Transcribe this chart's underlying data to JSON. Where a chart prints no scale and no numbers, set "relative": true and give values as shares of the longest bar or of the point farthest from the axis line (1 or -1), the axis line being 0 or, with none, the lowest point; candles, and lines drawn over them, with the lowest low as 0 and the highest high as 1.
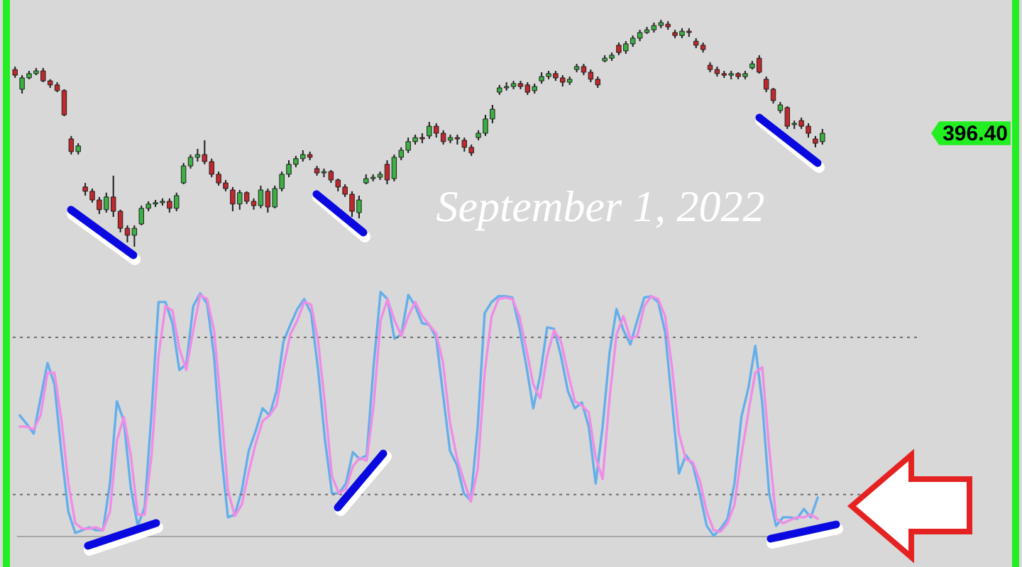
{
  "chart_data": [
    {
      "type": "candlestick",
      "relative": true,
      "categories": [
        null,
        null,
        null,
        null,
        null,
        null,
        null,
        null,
        null,
        null,
        null,
        null,
        null,
        null,
        null,
        null,
        null,
        null,
        null,
        null,
        null,
        null,
        null,
        null,
        null,
        null,
        null,
        null,
        null,
        null,
        null,
        null,
        null,
        null,
        null,
        null,
        null,
        null,
        null,
        null,
        null,
        null,
        null,
        null,
        null,
        null,
        null,
        null,
        null,
        null,
        null,
        null,
        null,
        null,
        null,
        null,
        null,
        null,
        null,
        null,
        null,
        null,
        null,
        null,
        null,
        null,
        null,
        null,
        null,
        null,
        null,
        null,
        null,
        null,
        null,
        null,
        null,
        null,
        null,
        null,
        null,
        null,
        null,
        null,
        null,
        null,
        null,
        null,
        null,
        null,
        null,
        null,
        null,
        null,
        null,
        null,
        null,
        null,
        null,
        null,
        null,
        null,
        null,
        null,
        null,
        null,
        null,
        null,
        null,
        null,
        null,
        null,
        null,
        null,
        null,
        null
      ],
      "ohlc": [
        [
          0.781,
          0.794,
          0.744,
          0.756
        ],
        [
          0.694,
          0.756,
          0.675,
          0.744
        ],
        [
          0.744,
          0.775,
          0.738,
          0.763
        ],
        [
          0.763,
          0.788,
          0.756,
          0.775
        ],
        [
          0.775,
          0.788,
          0.725,
          0.731
        ],
        [
          0.731,
          0.738,
          0.7,
          0.713
        ],
        [
          0.713,
          0.725,
          0.681,
          0.688
        ],
        [
          0.688,
          0.694,
          0.575,
          0.581
        ],
        [
          0.475,
          0.488,
          0.406,
          0.419
        ],
        [
          0.419,
          0.456,
          0.406,
          0.444
        ],
        [
          0.263,
          0.281,
          0.225,
          0.244
        ],
        [
          0.244,
          0.256,
          0.194,
          0.206
        ],
        [
          0.206,
          0.219,
          0.144,
          0.163
        ],
        [
          0.163,
          0.238,
          0.15,
          0.219
        ],
        [
          0.219,
          0.313,
          0.131,
          0.156
        ],
        [
          0.156,
          0.163,
          0.063,
          0.081
        ],
        [
          0.081,
          0.094,
          0.019,
          0.05
        ],
        [
          0.05,
          0.094,
          0,
          0.081
        ],
        [
          0.1,
          0.181,
          0.094,
          0.169
        ],
        [
          0.169,
          0.2,
          0.156,
          0.188
        ],
        [
          0.188,
          0.206,
          0.175,
          0.194
        ],
        [
          0.194,
          0.213,
          0.181,
          0.2
        ],
        [
          0.2,
          0.213,
          0.15,
          0.169
        ],
        [
          0.169,
          0.238,
          0.156,
          0.225
        ],
        [
          0.281,
          0.369,
          0.275,
          0.356
        ],
        [
          0.356,
          0.406,
          0.344,
          0.394
        ],
        [
          0.394,
          0.431,
          0.375,
          0.406
        ],
        [
          0.406,
          0.469,
          0.363,
          0.375
        ],
        [
          0.375,
          0.388,
          0.306,
          0.319
        ],
        [
          0.319,
          0.331,
          0.269,
          0.281
        ],
        [
          0.281,
          0.294,
          0.244,
          0.256
        ],
        [
          0.25,
          0.263,
          0.156,
          0.188
        ],
        [
          0.188,
          0.25,
          0.163,
          0.238
        ],
        [
          0.238,
          0.244,
          0.188,
          0.2
        ],
        [
          0.2,
          0.213,
          0.163,
          0.181
        ],
        [
          0.181,
          0.269,
          0.169,
          0.25
        ],
        [
          0.244,
          0.256,
          0.15,
          0.175
        ],
        [
          0.175,
          0.269,
          0.169,
          0.256
        ],
        [
          0.256,
          0.331,
          0.244,
          0.319
        ],
        [
          0.319,
          0.381,
          0.306,
          0.363
        ],
        [
          0.363,
          0.4,
          0.35,
          0.388
        ],
        [
          0.388,
          0.425,
          0.375,
          0.406
        ],
        [
          0.406,
          0.419,
          0.381,
          0.394
        ],
        [
          0.344,
          0.356,
          0.313,
          0.325
        ],
        [
          0.325,
          0.344,
          0.306,
          0.331
        ],
        [
          0.331,
          0.338,
          0.281,
          0.294
        ],
        [
          0.294,
          0.3,
          0.244,
          0.263
        ],
        [
          0.263,
          0.275,
          0.219,
          0.231
        ],
        [
          0.231,
          0.244,
          0.131,
          0.156
        ],
        [
          0.15,
          0.225,
          0.125,
          0.206
        ],
        [
          0.281,
          0.319,
          0.275,
          0.3
        ],
        [
          0.3,
          0.319,
          0.288,
          0.306
        ],
        [
          0.306,
          0.331,
          0.294,
          0.319
        ],
        [
          0.363,
          0.381,
          0.275,
          0.294
        ],
        [
          0.3,
          0.406,
          0.288,
          0.394
        ],
        [
          0.394,
          0.438,
          0.381,
          0.425
        ],
        [
          0.425,
          0.481,
          0.413,
          0.463
        ],
        [
          0.463,
          0.494,
          0.45,
          0.481
        ],
        [
          0.481,
          0.5,
          0.456,
          0.475
        ],
        [
          0.488,
          0.55,
          0.475,
          0.531
        ],
        [
          0.531,
          0.544,
          0.481,
          0.5
        ],
        [
          0.5,
          0.513,
          0.45,
          0.463
        ],
        [
          0.469,
          0.494,
          0.456,
          0.481
        ],
        [
          0.481,
          0.494,
          0.45,
          0.475
        ],
        [
          0.469,
          0.481,
          0.419,
          0.438
        ],
        [
          0.438,
          0.45,
          0.4,
          0.413
        ],
        [
          0.481,
          0.513,
          0.469,
          0.5
        ],
        [
          0.5,
          0.581,
          0.488,
          0.563
        ],
        [
          0.563,
          0.625,
          0.544,
          0.606
        ],
        [
          0.681,
          0.713,
          0.669,
          0.7
        ],
        [
          0.7,
          0.725,
          0.688,
          0.706
        ],
        [
          0.706,
          0.731,
          0.694,
          0.719
        ],
        [
          0.719,
          0.731,
          0.694,
          0.706
        ],
        [
          0.713,
          0.725,
          0.669,
          0.681
        ],
        [
          0.688,
          0.719,
          0.675,
          0.706
        ],
        [
          0.731,
          0.769,
          0.719,
          0.75
        ],
        [
          0.75,
          0.775,
          0.738,
          0.763
        ],
        [
          0.763,
          0.775,
          0.731,
          0.744
        ],
        [
          0.744,
          0.756,
          0.706,
          0.725
        ],
        [
          0.725,
          0.75,
          0.713,
          0.738
        ],
        [
          0.781,
          0.806,
          0.769,
          0.794
        ],
        [
          0.794,
          0.806,
          0.756,
          0.769
        ],
        [
          0.769,
          0.781,
          0.725,
          0.738
        ],
        [
          0.738,
          0.75,
          0.7,
          0.713
        ],
        [
          0.819,
          0.844,
          0.813,
          0.831
        ],
        [
          0.831,
          0.856,
          0.819,
          0.844
        ],
        [
          0.888,
          0.9,
          0.844,
          0.856
        ],
        [
          0.863,
          0.906,
          0.85,
          0.894
        ],
        [
          0.894,
          0.931,
          0.881,
          0.919
        ],
        [
          0.919,
          0.956,
          0.906,
          0.944
        ],
        [
          0.944,
          0.969,
          0.938,
          0.956
        ],
        [
          0.956,
          0.988,
          0.944,
          0.975
        ],
        [
          0.975,
          1,
          0.963,
          0.988
        ],
        [
          0.981,
          0.994,
          0.956,
          0.969
        ],
        [
          0.944,
          0.956,
          0.919,
          0.931
        ],
        [
          0.931,
          0.963,
          0.919,
          0.95
        ],
        [
          0.95,
          0.963,
          0.925,
          0.944
        ],
        [
          0.906,
          0.919,
          0.875,
          0.888
        ],
        [
          0.888,
          0.9,
          0.856,
          0.869
        ],
        [
          0.8,
          0.813,
          0.769,
          0.781
        ],
        [
          0.781,
          0.794,
          0.75,
          0.763
        ],
        [
          0.763,
          0.775,
          0.744,
          0.756
        ],
        [
          0.756,
          0.775,
          0.738,
          0.763
        ],
        [
          0.763,
          0.769,
          0.738,
          0.75
        ],
        [
          0.75,
          0.775,
          0.738,
          0.763
        ],
        [
          0.788,
          0.819,
          0.781,
          0.806
        ],
        [
          0.831,
          0.844,
          0.763,
          0.769
        ],
        [
          0.738,
          0.75,
          0.681,
          0.694
        ],
        [
          0.694,
          0.7,
          0.631,
          0.644
        ],
        [
          0.6,
          0.638,
          0.588,
          0.625
        ],
        [
          0.613,
          0.619,
          0.519,
          0.531
        ],
        [
          0.538,
          0.556,
          0.519,
          0.544
        ],
        [
          0.556,
          0.569,
          0.519,
          0.531
        ],
        [
          0.531,
          0.544,
          0.481,
          0.5
        ],
        [
          0.475,
          0.488,
          0.438,
          0.456
        ],
        [
          0.463,
          0.519,
          0.45,
          0.5
        ]
      ],
      "colors": [
        "#c0282d",
        "#3cb043",
        "#3cb043",
        "#3cb043",
        "#c0282d",
        "#c0282d",
        "#c0282d",
        "#c0282d",
        "#c0282d",
        "#3cb043",
        "#c0282d",
        "#c0282d",
        "#c0282d",
        "#3cb043",
        "#c0282d",
        "#c0282d",
        "#c0282d",
        "#3cb043",
        "#3cb043",
        "#3cb043",
        "#3cb043",
        "#3cb043",
        "#c0282d",
        "#3cb043",
        "#3cb043",
        "#3cb043",
        "#3cb043",
        "#c0282d",
        "#c0282d",
        "#c0282d",
        "#c0282d",
        "#c0282d",
        "#3cb043",
        "#c0282d",
        "#c0282d",
        "#3cb043",
        "#c0282d",
        "#3cb043",
        "#3cb043",
        "#3cb043",
        "#3cb043",
        "#3cb043",
        "#c0282d",
        "#c0282d",
        "#3cb043",
        "#c0282d",
        "#c0282d",
        "#c0282d",
        "#c0282d",
        "#3cb043",
        "#3cb043",
        "#3cb043",
        "#3cb043",
        "#c0282d",
        "#3cb043",
        "#3cb043",
        "#3cb043",
        "#3cb043",
        "#c0282d",
        "#3cb043",
        "#c0282d",
        "#c0282d",
        "#3cb043",
        "#c0282d",
        "#c0282d",
        "#c0282d",
        "#3cb043",
        "#3cb043",
        "#3cb043",
        "#3cb043",
        "#3cb043",
        "#3cb043",
        "#c0282d",
        "#c0282d",
        "#3cb043",
        "#3cb043",
        "#3cb043",
        "#c0282d",
        "#c0282d",
        "#3cb043",
        "#3cb043",
        "#c0282d",
        "#c0282d",
        "#c0282d",
        "#3cb043",
        "#3cb043",
        "#c0282d",
        "#3cb043",
        "#3cb043",
        "#3cb043",
        "#3cb043",
        "#3cb043",
        "#3cb043",
        "#c0282d",
        "#c0282d",
        "#3cb043",
        "#c0282d",
        "#c0282d",
        "#c0282d",
        "#c0282d",
        "#c0282d",
        "#c0282d",
        "#3cb043",
        "#c0282d",
        "#3cb043",
        "#3cb043",
        "#c0282d",
        "#c0282d",
        "#c0282d",
        "#3cb043",
        "#c0282d",
        "#3cb043",
        "#c0282d",
        "#c0282d",
        "#c0282d",
        "#3cb043"
      ],
      "annotations": [
        "September 1, 2022",
        "396.40"
      ]
    },
    {
      "type": "line",
      "relative": true,
      "categories": [
        null,
        null,
        null,
        null,
        null,
        null,
        null,
        null,
        null,
        null,
        null,
        null,
        null,
        null,
        null,
        null,
        null,
        null,
        null,
        null,
        null,
        null,
        null,
        null,
        null,
        null,
        null,
        null,
        null,
        null,
        null,
        null,
        null,
        null,
        null,
        null,
        null,
        null,
        null,
        null,
        null,
        null,
        null,
        null,
        null,
        null,
        null,
        null,
        null,
        null,
        null,
        null,
        null,
        null,
        null,
        null,
        null,
        null,
        null,
        null,
        null,
        null,
        null,
        null,
        null,
        null,
        null,
        null,
        null,
        null,
        null,
        null,
        null,
        null,
        null,
        null,
        null,
        null,
        null,
        null,
        null,
        null,
        null,
        null,
        null,
        null,
        null,
        null,
        null,
        null,
        null,
        null,
        null,
        null,
        null,
        null,
        null,
        null,
        null,
        null,
        null,
        null,
        null,
        null,
        null,
        null,
        null,
        null,
        null,
        null,
        null,
        null,
        null,
        null,
        null,
        null
      ],
      "series": [
        {
          "color": "#64afeb",
          "values": [
            0.494,
            0.459,
            0.419,
            0.564,
            0.709,
            0.622,
            0.343,
            0.099,
            0.012,
            0.023,
            0.035,
            0.023,
            0.023,
            0.215,
            0.552,
            0.471,
            0.198,
            0.041,
            0.116,
            0.506,
            0.959,
            0.959,
            0.872,
            0.68,
            0.703,
            0.942,
            0.994,
            0.953,
            0.738,
            0.349,
            0.076,
            0.087,
            0.186,
            0.349,
            0.43,
            0.523,
            0.494,
            0.593,
            0.797,
            0.866,
            0.93,
            0.971,
            0.913,
            0.68,
            0.39,
            0.174,
            0.174,
            0.215,
            0.343,
            0.314,
            0.331,
            0.698,
            1,
            0.971,
            0.808,
            0.826,
            0.988,
            0.942,
            0.872,
            0.866,
            0.814,
            0.581,
            0.349,
            0.291,
            0.174,
            0.145,
            0.448,
            0.913,
            0.959,
            0.983,
            0.983,
            0.977,
            0.855,
            0.698,
            0.523,
            0.657,
            0.855,
            0.849,
            0.738,
            0.593,
            0.523,
            0.547,
            0.448,
            0.215,
            0.448,
            0.75,
            0.93,
            0.843,
            0.785,
            0.884,
            0.977,
            0.983,
            0.959,
            0.837,
            0.547,
            0.256,
            0.331,
            0.291,
            0.174,
            0.041,
            0,
            0.029,
            0.07,
            0.215,
            0.488,
            0.605,
            0.779,
            0.547,
            0.174,
            0.041,
            0.076,
            0.076,
            0.07,
            0.11,
            0.076,
            0.157
          ]
        },
        {
          "color": "#f08ce6",
          "values": [
            0.448,
            0.448,
            0.436,
            0.494,
            0.669,
            0.669,
            0.477,
            0.215,
            0.052,
            0.029,
            0.029,
            0.035,
            0.023,
            0.099,
            0.39,
            0.488,
            0.331,
            0.087,
            0.087,
            0.331,
            0.738,
            0.942,
            0.924,
            0.767,
            0.68,
            0.843,
            0.988,
            0.971,
            0.843,
            0.535,
            0.186,
            0.081,
            0.128,
            0.262,
            0.378,
            0.471,
            0.494,
            0.535,
            0.692,
            0.826,
            0.884,
            0.959,
            0.948,
            0.797,
            0.535,
            0.244,
            0.174,
            0.192,
            0.285,
            0.32,
            0.308,
            0.535,
            0.884,
            0.971,
            0.884,
            0.82,
            0.901,
            0.959,
            0.901,
            0.866,
            0.831,
            0.709,
            0.465,
            0.32,
            0.227,
            0.14,
            0.273,
            0.669,
            0.901,
            0.971,
            0.977,
            0.971,
            0.901,
            0.767,
            0.622,
            0.564,
            0.738,
            0.843,
            0.797,
            0.669,
            0.552,
            0.535,
            0.506,
            0.32,
            0.233,
            0.564,
            0.826,
            0.901,
            0.808,
            0.82,
            0.942,
            0.983,
            0.971,
            0.901,
            0.692,
            0.419,
            0.314,
            0.302,
            0.227,
            0.099,
            0.023,
            0.017,
            0.052,
            0.128,
            0.331,
            0.506,
            0.669,
            0.692,
            0.36,
            0.07,
            0.052,
            0.064,
            0.076,
            0.076,
            0.087,
            0.07
          ]
        }
      ],
      "ref_lines": [
        {
          "axis": "y",
          "value": 0.814,
          "color": "#6e6e6e",
          "line_style": "dotted"
        },
        {
          "axis": "y",
          "value": 0.169,
          "color": "#6e6e6e",
          "line_style": "dotted"
        }
      ]
    }
  ]
}
